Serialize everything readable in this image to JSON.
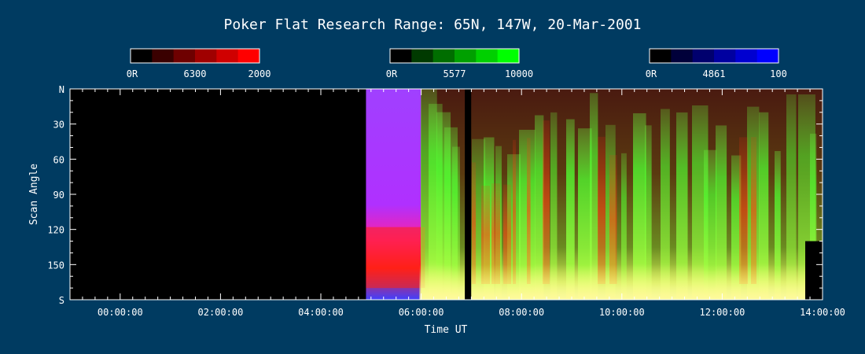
{
  "chart_data": {
    "type": "heatmap",
    "title": "Poker Flat Research Range: 65N, 147W, 20-Mar-2001",
    "xlabel": "Time UT",
    "ylabel": "Scan Angle",
    "xlim_hours": [
      -1.0,
      14.0
    ],
    "xticks": [
      {
        "value": 0,
        "label": "00:00:00"
      },
      {
        "value": 2,
        "label": "02:00:00"
      },
      {
        "value": 4,
        "label": "04:00:00"
      },
      {
        "value": 6,
        "label": "06:00:00"
      },
      {
        "value": 8,
        "label": "08:00:00"
      },
      {
        "value": 10,
        "label": "10:00:00"
      },
      {
        "value": 12,
        "label": "12:00:00"
      },
      {
        "value": 14,
        "label": "14:00:00"
      }
    ],
    "ylim": [
      0,
      180
    ],
    "yticks": [
      {
        "value": 0,
        "label": "N"
      },
      {
        "value": 30,
        "label": "30"
      },
      {
        "value": 60,
        "label": "60"
      },
      {
        "value": 90,
        "label": "90"
      },
      {
        "value": 120,
        "label": "120"
      },
      {
        "value": 150,
        "label": "150"
      },
      {
        "value": 180,
        "label": "S"
      }
    ],
    "data_start_hours": 4.9,
    "data_gap_hours": [
      6.87,
      6.95
    ],
    "colorbars": [
      {
        "min_label": "0R",
        "mid_label": "6300",
        "max_label": "2000",
        "colors": [
          "#000000",
          "#3a0000",
          "#6e0000",
          "#a00000",
          "#d00000",
          "#ff0000"
        ]
      },
      {
        "min_label": "0R",
        "mid_label": "5577",
        "max_label": "10000",
        "colors": [
          "#000000",
          "#003a00",
          "#006e00",
          "#00a000",
          "#00d000",
          "#00ff00"
        ]
      },
      {
        "min_label": "0R",
        "mid_label": "4861",
        "max_label": "100",
        "colors": [
          "#000000",
          "#00003a",
          "#00006e",
          "#0000a0",
          "#0000d0",
          "#0000ff"
        ]
      }
    ]
  }
}
